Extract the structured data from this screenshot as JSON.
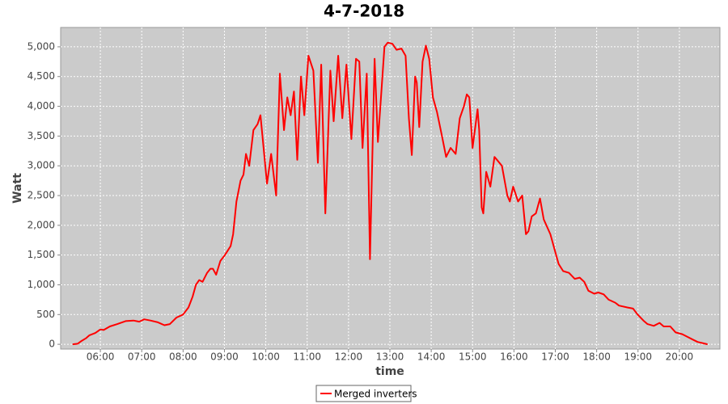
{
  "chart_data": {
    "type": "line",
    "title": "4-7-2018",
    "xlabel": "time",
    "ylabel": "Watt",
    "x": [
      5.33,
      5.45,
      5.53,
      5.65,
      5.73,
      5.88,
      6.0,
      6.08,
      6.23,
      6.41,
      6.61,
      6.8,
      6.94,
      7.06,
      7.21,
      7.39,
      7.55,
      7.68,
      7.84,
      8.0,
      8.13,
      8.23,
      8.31,
      8.39,
      8.47,
      8.58,
      8.66,
      8.72,
      8.8,
      8.9,
      9.01,
      9.15,
      9.21,
      9.29,
      9.39,
      9.46,
      9.52,
      9.6,
      9.7,
      9.8,
      9.87,
      10.03,
      10.13,
      10.25,
      10.34,
      10.44,
      10.52,
      10.6,
      10.68,
      10.76,
      10.85,
      10.93,
      11.03,
      11.15,
      11.26,
      11.34,
      11.44,
      11.56,
      11.64,
      11.75,
      11.85,
      11.95,
      12.07,
      12.18,
      12.26,
      12.34,
      12.44,
      12.52,
      12.63,
      12.71,
      12.87,
      12.95,
      13.06,
      13.16,
      13.28,
      13.38,
      13.46,
      13.53,
      13.61,
      13.65,
      13.71,
      13.79,
      13.87,
      13.95,
      14.04,
      14.14,
      14.26,
      14.36,
      14.47,
      14.59,
      14.69,
      14.79,
      14.86,
      14.92,
      15.0,
      15.12,
      15.16,
      15.22,
      15.26,
      15.33,
      15.43,
      15.53,
      15.59,
      15.71,
      15.84,
      15.9,
      15.98,
      16.1,
      16.2,
      16.29,
      16.35,
      16.43,
      16.53,
      16.63,
      16.72,
      16.88,
      17.0,
      17.08,
      17.19,
      17.33,
      17.47,
      17.59,
      17.7,
      17.8,
      17.94,
      18.04,
      18.17,
      18.29,
      18.45,
      18.54,
      18.74,
      18.88,
      18.99,
      19.13,
      19.23,
      19.38,
      19.52,
      19.62,
      19.78,
      19.91,
      20.07,
      20.21,
      20.32,
      20.44,
      20.56,
      20.68
    ],
    "series": [
      {
        "name": "Merged inverters",
        "color": "#ff0000",
        "values": [
          0,
          10,
          50,
          100,
          150,
          190,
          250,
          240,
          300,
          340,
          390,
          400,
          380,
          420,
          400,
          370,
          320,
          340,
          450,
          500,
          620,
          800,
          1000,
          1080,
          1050,
          1200,
          1270,
          1270,
          1170,
          1400,
          1500,
          1650,
          1850,
          2400,
          2750,
          2850,
          3200,
          3000,
          3600,
          3700,
          3850,
          2700,
          3200,
          2500,
          4550,
          3600,
          4150,
          3850,
          4250,
          3100,
          4500,
          3850,
          4850,
          4600,
          3050,
          4700,
          2200,
          4600,
          3750,
          4850,
          3800,
          4700,
          3450,
          4800,
          4750,
          3300,
          4550,
          1430,
          4800,
          3400,
          5000,
          5070,
          5050,
          4950,
          4970,
          4850,
          3800,
          3180,
          4500,
          4400,
          3650,
          4750,
          5020,
          4800,
          4150,
          3900,
          3500,
          3150,
          3300,
          3200,
          3800,
          4000,
          4200,
          4150,
          3300,
          3950,
          3600,
          2300,
          2200,
          2900,
          2650,
          3150,
          3100,
          3000,
          2500,
          2400,
          2650,
          2400,
          2500,
          1850,
          1900,
          2150,
          2200,
          2450,
          2100,
          1850,
          1550,
          1350,
          1230,
          1200,
          1100,
          1120,
          1050,
          900,
          850,
          870,
          840,
          750,
          700,
          650,
          620,
          600,
          500,
          400,
          340,
          310,
          360,
          300,
          300,
          200,
          170,
          120,
          80,
          40,
          20,
          0
        ]
      }
    ],
    "xlim": [
      5.04,
      20.98
    ],
    "xticks": [
      {
        "value": 6,
        "label": "06:00"
      },
      {
        "value": 7,
        "label": "07:00"
      },
      {
        "value": 8,
        "label": "08:00"
      },
      {
        "value": 9,
        "label": "09:00"
      },
      {
        "value": 10,
        "label": "10:00"
      },
      {
        "value": 11,
        "label": "11:00"
      },
      {
        "value": 12,
        "label": "12:00"
      },
      {
        "value": 13,
        "label": "13:00"
      },
      {
        "value": 14,
        "label": "14:00"
      },
      {
        "value": 15,
        "label": "15:00"
      },
      {
        "value": 16,
        "label": "16:00"
      },
      {
        "value": 17,
        "label": "17:00"
      },
      {
        "value": 18,
        "label": "18:00"
      },
      {
        "value": 19,
        "label": "19:00"
      },
      {
        "value": 20,
        "label": "20:00"
      }
    ],
    "ylim": [
      -80,
      5325
    ],
    "yticks": [
      0,
      500,
      {
        "value": 1000,
        "label": "1,000"
      },
      {
        "value": 1500,
        "label": "1,500"
      },
      {
        "value": 2000,
        "label": "2,000"
      },
      {
        "value": 2500,
        "label": "2,500"
      },
      {
        "value": 3000,
        "label": "3,000"
      },
      {
        "value": 3500,
        "label": "3,500"
      },
      {
        "value": 4000,
        "label": "4,000"
      },
      {
        "value": 4500,
        "label": "4,500"
      },
      {
        "value": 5000,
        "label": "5,000"
      }
    ],
    "grid": true
  }
}
